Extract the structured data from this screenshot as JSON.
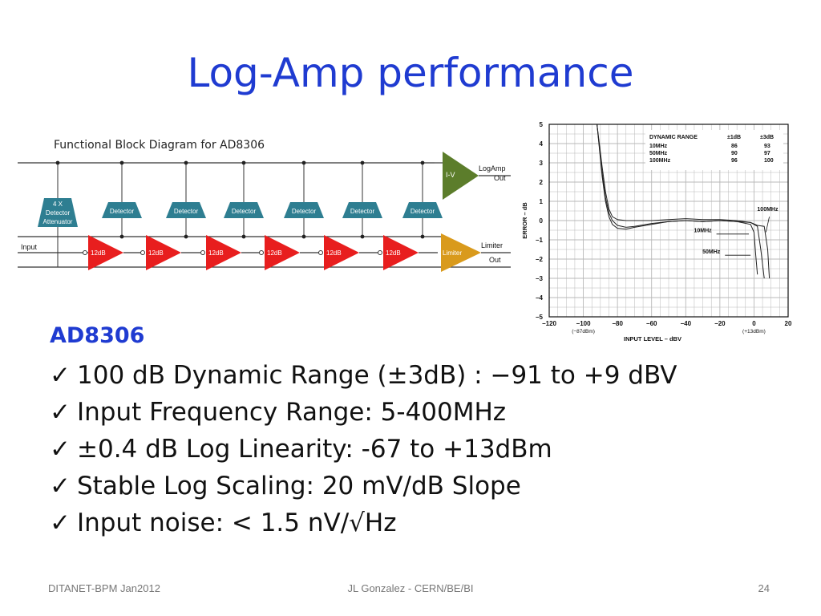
{
  "slide": {
    "title": "Log-Amp performance",
    "chip": "AD8306",
    "check_glyph": "✓",
    "bullets": [
      "100 dB Dynamic Range (±3dB) : −91 to +9 dBV",
      "Input Frequency Range: 5-400MHz",
      "±0.4 dB Log Linearity: -67 to +13dBm",
      "Stable Log Scaling: 20 mV/dB Slope",
      "Input noise: < 1.5 nV/√Hz"
    ],
    "footer": {
      "left": "DITANET-BPM Jan2012",
      "center": "JL Gonzalez - CERN/BE/BI",
      "right": "24"
    }
  },
  "diagram": {
    "title": "Functional Block Diagram for AD8306",
    "attenuator_label": [
      "4 X",
      "Detector",
      "Attenuator"
    ],
    "detector_label": "Detector",
    "gain_label": "12dB",
    "input_label": "Input",
    "iv_label": "I-V",
    "logamp_out_label": [
      "LogAmp",
      "Out"
    ],
    "limiter_label": "Limiter",
    "limiter_out_label": [
      "Limiter",
      "Out"
    ],
    "colors": {
      "detector": "#2e7e91",
      "gain": "#e81e1e",
      "iv": "#5c7d2b",
      "limiter": "#d99a1c",
      "wire": "#333333"
    }
  },
  "chart_data": {
    "type": "line",
    "xlabel": "INPUT LEVEL – dBV",
    "ylabel": "ERROR – dB",
    "xlim": [
      -120,
      20
    ],
    "ylim": [
      -5,
      5
    ],
    "xticks": [
      -120,
      -100,
      -80,
      -60,
      -40,
      -20,
      0,
      20
    ],
    "yticks": [
      -5,
      -4,
      -3,
      -2,
      -1,
      0,
      1,
      2,
      3,
      4,
      5
    ],
    "xtick_notes": [
      {
        "at": -100,
        "text": "(−87dBm)"
      },
      {
        "at": 0,
        "text": "(+13dBm)"
      }
    ],
    "grid": true,
    "table": {
      "headers": [
        "DYNAMIC RANGE",
        "±1dB",
        "±3dB"
      ],
      "rows": [
        [
          "10MHz",
          "86",
          "93"
        ],
        [
          "50MHz",
          "90",
          "97"
        ],
        [
          "100MHz",
          "96",
          "100"
        ]
      ]
    },
    "series": [
      {
        "name": "10MHz",
        "x": [
          -92,
          -89,
          -87,
          -85,
          -83,
          -80,
          -75,
          -70,
          -60,
          -50,
          -40,
          -30,
          -20,
          -10,
          -2,
          2,
          4,
          6
        ],
        "y": [
          5,
          2.5,
          1.2,
          0.4,
          0,
          -0.25,
          -0.35,
          -0.3,
          -0.15,
          -0.05,
          0,
          -0.05,
          0,
          -0.05,
          -0.1,
          -0.3,
          -1.5,
          -3
        ]
      },
      {
        "name": "50MHz",
        "x": [
          -92,
          -89,
          -87,
          -85,
          -83,
          -80,
          -75,
          -70,
          -60,
          -50,
          -40,
          -30,
          -20,
          -10,
          -2,
          0,
          1,
          2
        ],
        "y": [
          5,
          2.3,
          1.0,
          0.2,
          -0.2,
          -0.4,
          -0.45,
          -0.35,
          -0.2,
          -0.05,
          0,
          -0.05,
          0,
          -0.05,
          -0.2,
          -0.6,
          -1.8,
          -2.8
        ]
      },
      {
        "name": "100MHz",
        "x": [
          -92,
          -89,
          -87,
          -85,
          -83,
          -80,
          -75,
          -70,
          -60,
          -50,
          -40,
          -30,
          -20,
          -10,
          -2,
          2,
          6,
          8,
          9
        ],
        "y": [
          5,
          2.8,
          1.5,
          0.6,
          0.2,
          0.05,
          0,
          0,
          0,
          0.05,
          0.1,
          0.05,
          0.05,
          0,
          -0.1,
          -0.25,
          -0.3,
          -1.5,
          -3
        ]
      }
    ],
    "annotations": [
      {
        "text": "100MHz",
        "x": 8,
        "y": 0.5
      },
      {
        "text": "10MHz",
        "x": -30,
        "y": -0.6
      },
      {
        "text": "50MHz",
        "x": -25,
        "y": -1.7
      }
    ]
  }
}
